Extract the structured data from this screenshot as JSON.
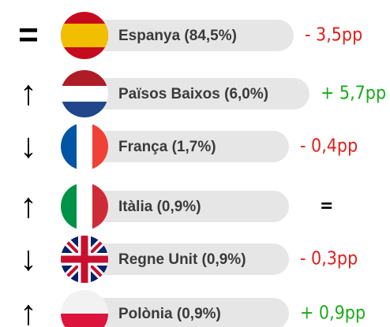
{
  "rows": [
    {
      "trend": "=",
      "label": "Espanya (84,5%)",
      "change": "- 3,5pp",
      "color": "#e0201b"
    },
    {
      "trend": "↑",
      "label": "Països Baixos (6,0%)",
      "change": "+ 5,7pp",
      "color": "#1aaa1a"
    },
    {
      "trend": "↓",
      "label": "França (1,7%)",
      "change": "- 0,4pp",
      "color": "#e0201b"
    },
    {
      "trend": "↑",
      "label": "Itàlia (0,9%)",
      "change": "=",
      "color": "#000000"
    },
    {
      "trend": "↓",
      "label": "Regne Unit (0,9%)",
      "change": "- 0,3pp",
      "color": "#e0201b"
    },
    {
      "trend": "↑",
      "label": "Polònia (0,9%)",
      "change": "+ 0,9pp",
      "color": "#1aaa1a"
    }
  ]
}
